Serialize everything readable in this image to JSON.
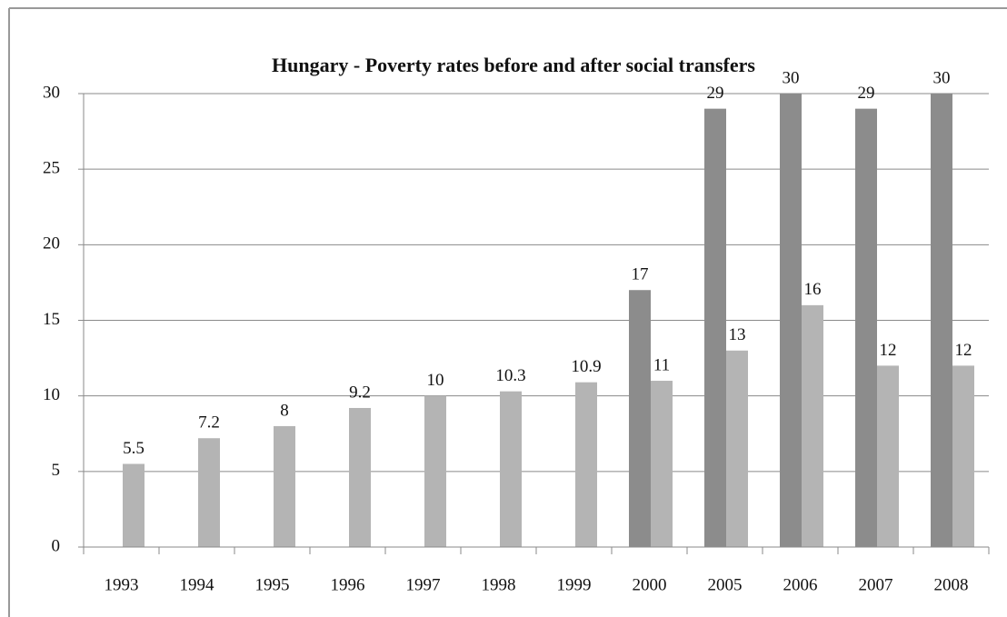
{
  "chart_data": {
    "type": "bar",
    "title": "Hungary - Poverty rates before and after social transfers",
    "categories": [
      "1993",
      "1994",
      "1995",
      "1996",
      "1997",
      "1998",
      "1999",
      "2000",
      "2005",
      "2006",
      "2007",
      "2008"
    ],
    "series": [
      {
        "color": "#8c8c8c",
        "values": [
          null,
          null,
          null,
          null,
          null,
          null,
          null,
          17,
          29,
          30,
          29,
          30
        ]
      },
      {
        "color": "#b4b4b4",
        "values": [
          5.5,
          7.2,
          8,
          9.2,
          10,
          10.3,
          10.9,
          11,
          13,
          16,
          12,
          12
        ]
      }
    ],
    "ylim": [
      0,
      30
    ],
    "yticks": [
      0,
      5,
      10,
      15,
      20,
      25,
      30
    ],
    "grid": true
  }
}
